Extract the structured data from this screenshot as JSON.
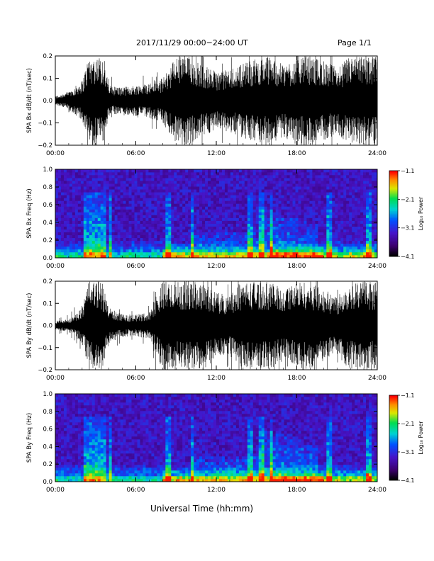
{
  "header": {
    "title": "2017/11/29  00:00−24:00 UT",
    "page": "Page 1/1"
  },
  "chart_data": [
    {
      "type": "line",
      "ylabel": "SPA Bx dB/dt (nT/sec)",
      "ylim": [
        -0.2,
        0.2
      ],
      "yticks": [
        "−0.2",
        "−0.1",
        "0.0",
        "0.1",
        "0.2"
      ],
      "xlim": [
        "00:00",
        "24:00"
      ],
      "xticks": [
        "00:00",
        "06:00",
        "12:00",
        "18:00",
        "24:00"
      ],
      "series": [
        {
          "x_hours": [
            0,
            1,
            2,
            2.5,
            3,
            3.5,
            4,
            5,
            6,
            7,
            8,
            9,
            10,
            11,
            12,
            13,
            14,
            15,
            16,
            17,
            18,
            19,
            20,
            21,
            22,
            23,
            24
          ],
          "envelope": [
            0.02,
            0.04,
            0.09,
            0.2,
            0.2,
            0.2,
            0.07,
            0.06,
            0.07,
            0.08,
            0.1,
            0.2,
            0.2,
            0.16,
            0.13,
            0.14,
            0.17,
            0.19,
            0.2,
            0.16,
            0.2,
            0.2,
            0.18,
            0.15,
            0.2,
            0.2,
            0.2
          ]
        }
      ]
    },
    {
      "type": "heatmap",
      "ylabel": "SPA Bx Freq (Hz)",
      "ylim": [
        0.0,
        1.0
      ],
      "yticks": [
        "0.0",
        "0.2",
        "0.4",
        "0.6",
        "0.8",
        "1.0"
      ],
      "xlim": [
        "00:00",
        "24:00"
      ],
      "xticks": [
        "00:00",
        "06:00",
        "12:00",
        "18:00",
        "24:00"
      ],
      "colorbar": {
        "label": "Log₁₀ Power",
        "range": [
          -4.1,
          -1.1
        ],
        "ticks": [
          "−1.1",
          "−2.1",
          "−3.1",
          "−4.1"
        ]
      }
    },
    {
      "type": "line",
      "ylabel": "SPA By dB/dt (nT/sec)",
      "ylim": [
        -0.2,
        0.2
      ],
      "yticks": [
        "−0.2",
        "−0.1",
        "0.0",
        "0.1",
        "0.2"
      ],
      "xlim": [
        "00:00",
        "24:00"
      ],
      "xticks": [
        "00:00",
        "06:00",
        "12:00",
        "18:00",
        "24:00"
      ],
      "series": [
        {
          "x_hours": [
            0,
            1,
            2,
            2.5,
            3,
            3.5,
            4,
            5,
            6,
            7,
            8,
            9,
            10,
            11,
            12,
            13,
            14,
            15,
            16,
            17,
            18,
            19,
            20,
            21,
            22,
            23,
            24
          ],
          "envelope": [
            0.02,
            0.03,
            0.08,
            0.2,
            0.2,
            0.2,
            0.08,
            0.05,
            0.05,
            0.06,
            0.2,
            0.2,
            0.2,
            0.2,
            0.15,
            0.14,
            0.2,
            0.2,
            0.2,
            0.16,
            0.2,
            0.2,
            0.16,
            0.14,
            0.2,
            0.2,
            0.2
          ]
        }
      ]
    },
    {
      "type": "heatmap",
      "ylabel": "SPA By Freq (Hz)",
      "ylim": [
        0.0,
        1.0
      ],
      "yticks": [
        "0.0",
        "0.2",
        "0.4",
        "0.6",
        "0.8",
        "1.0"
      ],
      "xlim": [
        "00:00",
        "24:00"
      ],
      "xticks": [
        "00:00",
        "06:00",
        "12:00",
        "18:00",
        "24:00"
      ],
      "colorbar": {
        "label": "Log₁₀ Power",
        "range": [
          -4.1,
          -1.1
        ],
        "ticks": [
          "−1.1",
          "−2.1",
          "−3.1",
          "−4.1"
        ]
      }
    }
  ],
  "footer": {
    "xlabel": "Universal Time (hh:mm)"
  }
}
